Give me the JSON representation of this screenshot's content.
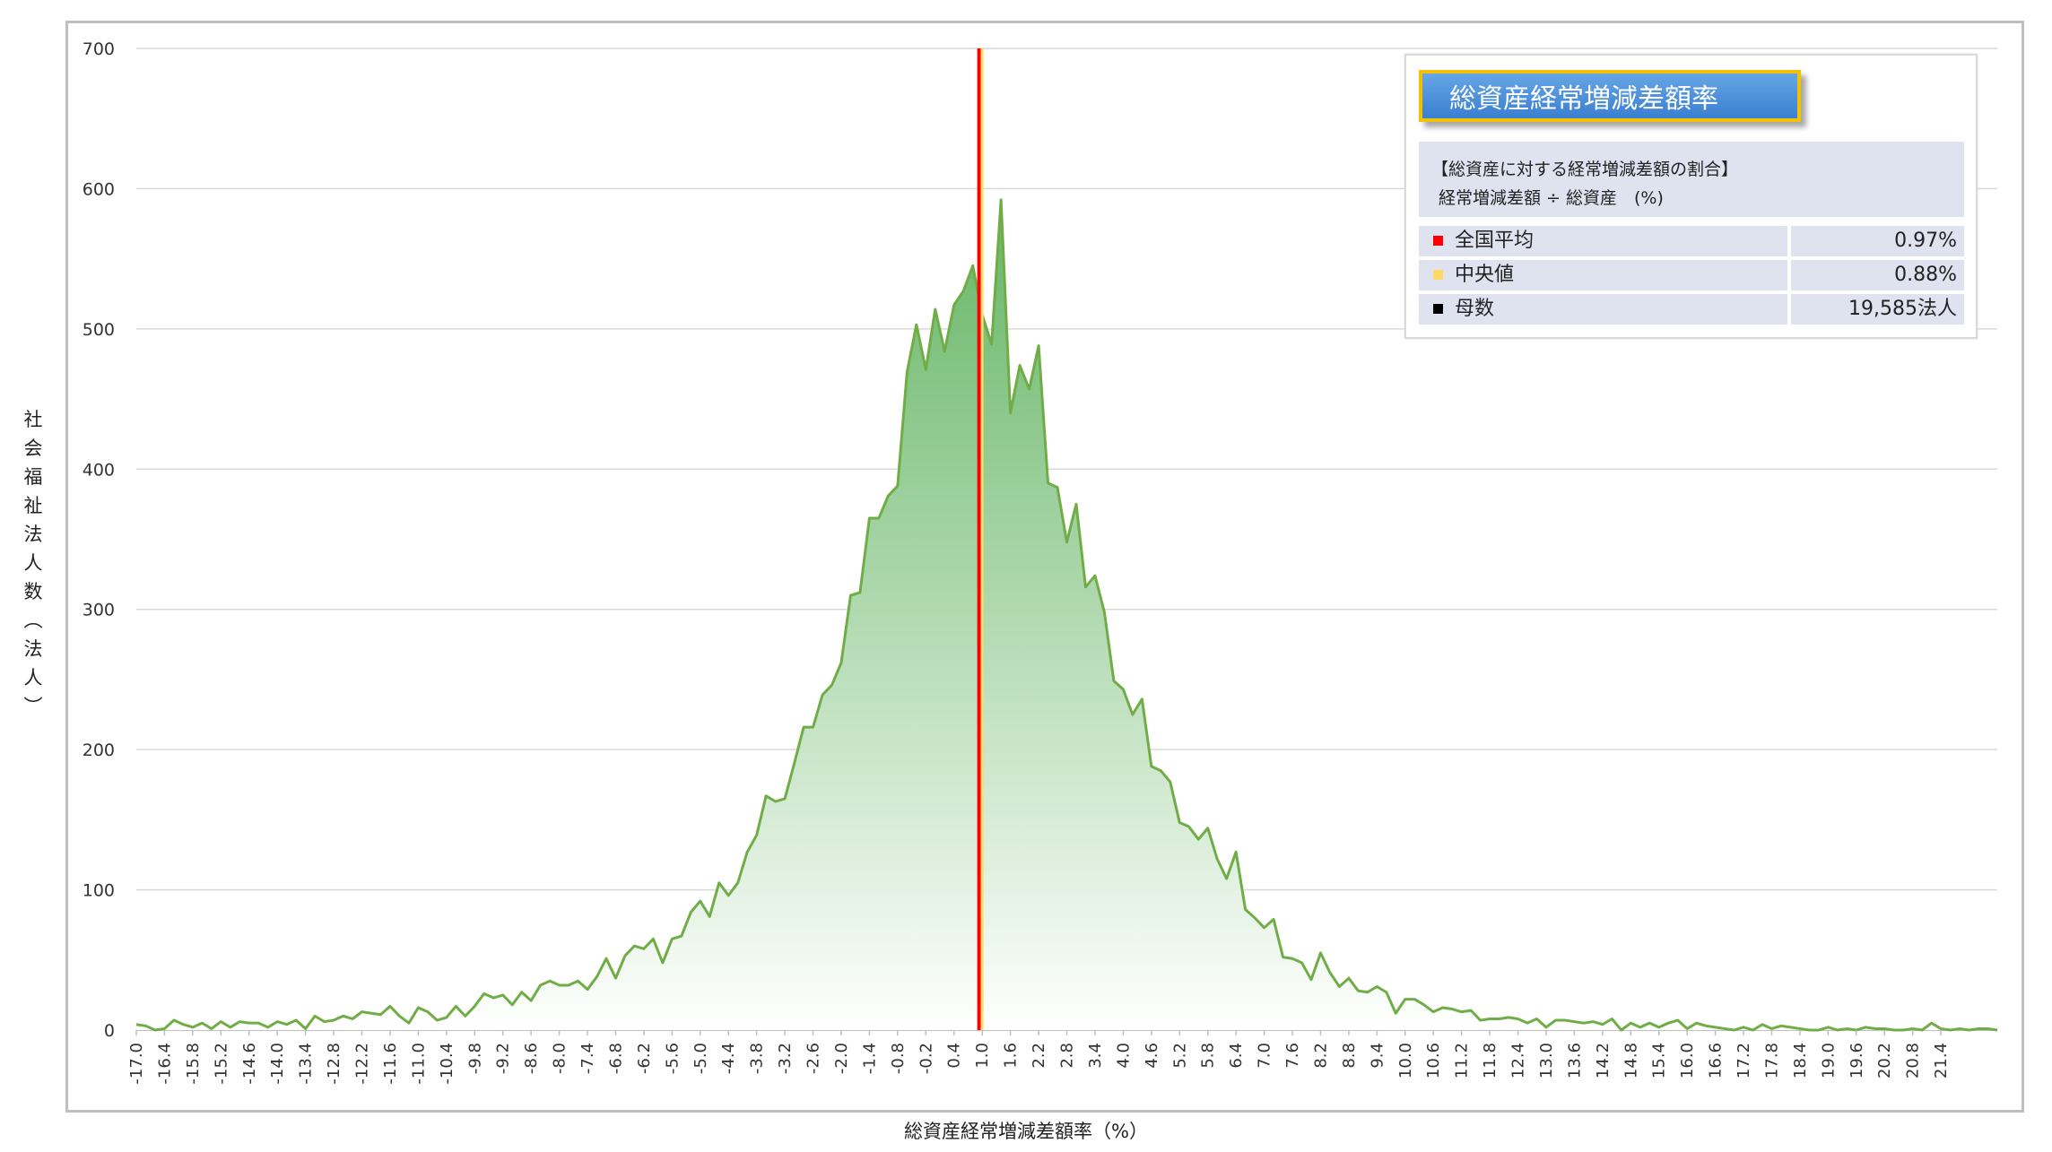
{
  "colors": {
    "area_line": "#70ad47",
    "area_fill_top": "#6fbf6f",
    "mean_line": "#ff0000",
    "median_line": "#ffd966",
    "count_marker": "#000000",
    "grid": "#d9d9d9"
  },
  "y_axis": {
    "label_chars": [
      "社",
      "会",
      "福",
      "祉",
      "法",
      "人",
      "数",
      "︵",
      "法",
      "人",
      "︶"
    ]
  },
  "info": {
    "title": "総資産経常増減差額率",
    "desc_line1": "【総資産に対する経常増減差額の割合】",
    "desc_line2": "経常増減差額 ÷ 総資産　(%)",
    "rows": [
      {
        "label": "全国平均",
        "value": "0.97%",
        "color": "#ff0000"
      },
      {
        "label": "中央値",
        "value": "0.88%",
        "color": "#ffd966"
      },
      {
        "label": "母数",
        "value": "19,585法人",
        "color": "#000000"
      }
    ]
  },
  "chart_data": {
    "type": "area",
    "xlabel": "総資産経常増減差額率（%）",
    "ylabel": "社会福祉法人数（法人）",
    "ylim": [
      0,
      700
    ],
    "yticks": [
      0,
      100,
      200,
      300,
      400,
      500,
      600,
      700
    ],
    "x_start": -17.0,
    "x_step": 0.2,
    "x_tick_labels": [
      "-17.0",
      "-16.4",
      "-15.8",
      "-15.2",
      "-14.6",
      "-14.0",
      "-13.4",
      "-12.8",
      "-12.2",
      "-11.6",
      "-11.0",
      "-10.4",
      "-9.8",
      "-9.2",
      "-8.6",
      "-8.0",
      "-7.4",
      "-6.8",
      "-6.2",
      "-5.6",
      "-5.0",
      "-4.4",
      "-3.8",
      "-3.2",
      "-2.6",
      "-2.0",
      "-1.4",
      "-0.8",
      "-0.2",
      "0.4",
      "1.0",
      "1.6",
      "2.2",
      "2.8",
      "3.4",
      "4.0",
      "4.6",
      "5.2",
      "5.8",
      "6.4",
      "7.0",
      "7.6",
      "8.2",
      "8.8",
      "9.4",
      "10.0",
      "10.6",
      "11.2",
      "11.8",
      "12.4",
      "13.0",
      "13.6",
      "14.2",
      "14.8",
      "15.4",
      "16.0",
      "16.6",
      "17.2",
      "17.8",
      "18.4",
      "19.0",
      "19.6",
      "20.2",
      "20.8",
      "21.4"
    ],
    "mean_line_x": 0.97,
    "median_line_x": 0.88,
    "values": [
      4,
      3,
      0,
      1,
      7,
      4,
      2,
      5,
      1,
      6,
      2,
      6,
      5,
      5,
      2,
      6,
      4,
      7,
      1,
      10,
      6,
      7,
      10,
      8,
      13,
      12,
      11,
      17,
      10,
      5,
      16,
      13,
      7,
      9,
      17,
      10,
      17,
      26,
      23,
      25,
      18,
      27,
      21,
      32,
      35,
      32,
      32,
      35,
      29,
      38,
      51,
      37,
      53,
      60,
      58,
      65,
      48,
      65,
      67,
      84,
      92,
      81,
      105,
      96,
      105,
      127,
      139,
      167,
      163,
      165,
      190,
      216,
      216,
      239,
      246,
      262,
      310,
      312,
      365,
      365,
      381,
      388,
      469,
      503,
      471,
      514,
      484,
      517,
      527,
      545,
      510,
      489,
      592,
      440,
      474,
      457,
      488,
      390,
      387,
      348,
      375,
      316,
      324,
      298,
      249,
      243,
      225,
      236,
      188,
      185,
      177,
      148,
      145,
      136,
      144,
      122,
      108,
      127,
      86,
      80,
      73,
      79,
      52,
      51,
      48,
      36,
      55,
      41,
      31,
      37,
      28,
      27,
      31,
      27,
      12,
      22,
      22,
      18,
      13,
      16,
      15,
      13,
      14,
      7,
      8,
      8,
      9,
      8,
      5,
      8,
      2,
      7,
      7,
      6,
      5,
      6,
      4,
      8,
      0,
      5,
      2,
      5,
      2,
      5,
      7,
      1,
      5,
      3,
      2,
      1,
      0,
      2,
      0,
      4,
      1,
      3,
      2,
      1,
      0,
      0,
      2,
      0,
      1,
      0,
      2,
      1,
      1,
      0,
      0,
      1,
      0,
      5,
      1,
      0,
      1,
      0,
      1,
      1,
      0
    ]
  }
}
